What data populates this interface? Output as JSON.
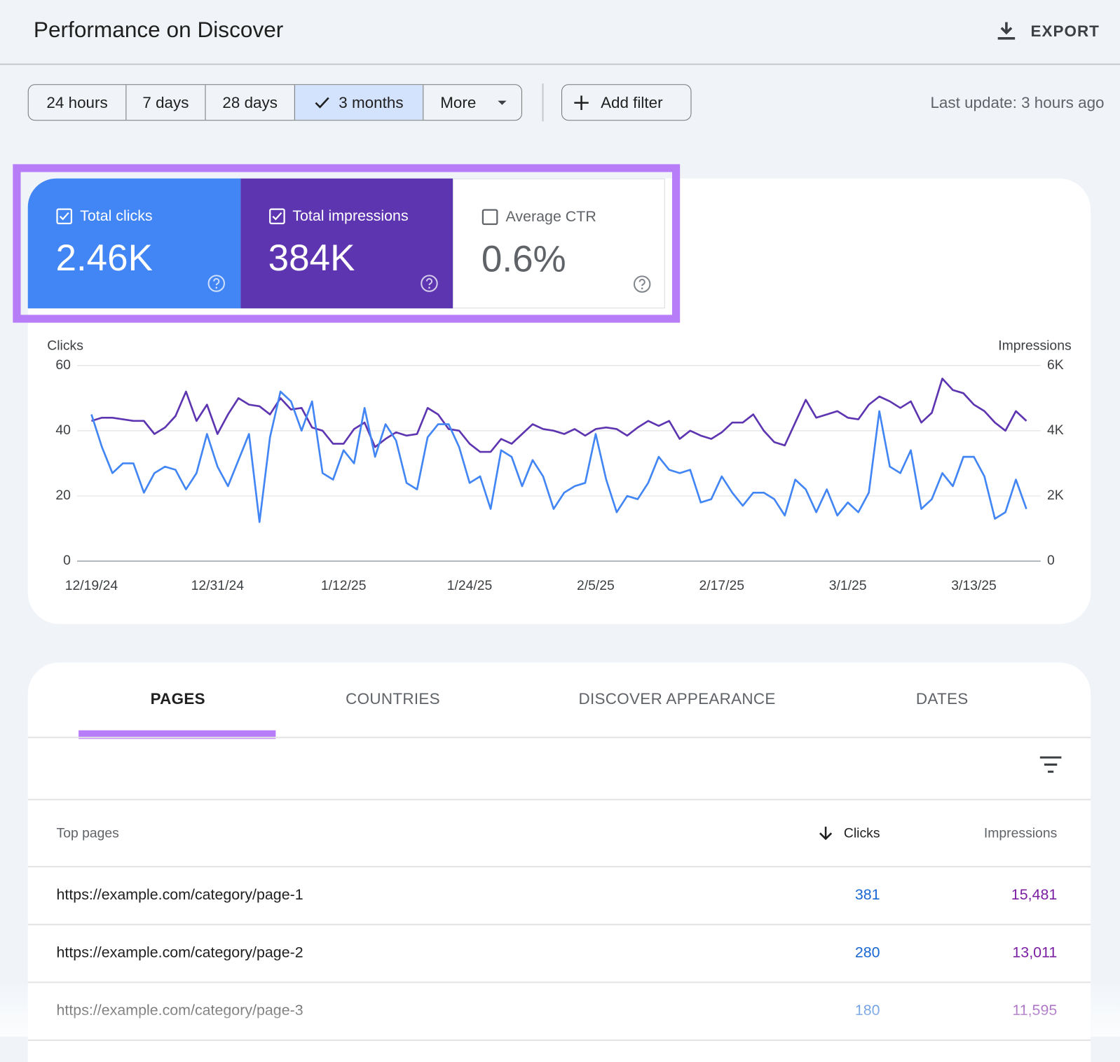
{
  "header": {
    "title": "Performance on Discover",
    "export": "EXPORT"
  },
  "toolbar": {
    "ranges": [
      "24 hours",
      "7 days",
      "28 days",
      "3 months",
      "More"
    ],
    "selected": 3,
    "add_filter": "Add filter",
    "last_update": "Last update: 3 hours ago"
  },
  "scorecards": [
    {
      "label": "Total clicks",
      "value": "2.46K",
      "checked": true,
      "color": "#4285f4"
    },
    {
      "label": "Total impressions",
      "value": "384K",
      "checked": true,
      "color": "#5e35b1"
    },
    {
      "label": "Average CTR",
      "value": "0.6%",
      "checked": false,
      "color": "#ffffff"
    }
  ],
  "chart_data": {
    "type": "line",
    "x": [
      "12/19/24",
      "12/20/24",
      "12/21/24",
      "12/22/24",
      "12/23/24",
      "12/24/24",
      "12/25/24",
      "12/26/24",
      "12/27/24",
      "12/28/24",
      "12/29/24",
      "12/30/24",
      "12/31/24",
      "1/1/25",
      "1/2/25",
      "1/3/25",
      "1/4/25",
      "1/5/25",
      "1/6/25",
      "1/7/25",
      "1/8/25",
      "1/9/25",
      "1/10/25",
      "1/11/25",
      "1/12/25",
      "1/13/25",
      "1/14/25",
      "1/15/25",
      "1/16/25",
      "1/17/25",
      "1/18/25",
      "1/19/25",
      "1/20/25",
      "1/21/25",
      "1/22/25",
      "1/23/25",
      "1/24/25",
      "1/25/25",
      "1/26/25",
      "1/27/25",
      "1/28/25",
      "1/29/25",
      "1/30/25",
      "1/31/25",
      "2/1/25",
      "2/2/25",
      "2/3/25",
      "2/4/25",
      "2/5/25",
      "2/6/25",
      "2/7/25",
      "2/8/25",
      "2/9/25",
      "2/10/25",
      "2/11/25",
      "2/12/25",
      "2/13/25",
      "2/14/25",
      "2/15/25",
      "2/16/25",
      "2/17/25",
      "2/18/25",
      "2/19/25",
      "2/20/25",
      "2/21/25",
      "2/22/25",
      "2/23/25",
      "2/24/25",
      "2/25/25",
      "2/26/25",
      "2/27/25",
      "2/28/25",
      "3/1/25",
      "3/2/25",
      "3/3/25",
      "3/4/25",
      "3/5/25",
      "3/6/25",
      "3/7/25",
      "3/8/25",
      "3/9/25",
      "3/10/25",
      "3/11/25",
      "3/12/25",
      "3/13/25",
      "3/14/25",
      "3/15/25",
      "3/16/25",
      "3/17/25",
      "3/18/25"
    ],
    "xticks": [
      "12/19/24",
      "12/31/24",
      "1/12/25",
      "1/24/25",
      "2/5/25",
      "2/17/25",
      "3/1/25",
      "3/13/25"
    ],
    "series": [
      {
        "name": "Clicks",
        "color": "#4285f4",
        "values": [
          45,
          35,
          27,
          30,
          30,
          21,
          27,
          29,
          28,
          22,
          27,
          39,
          29,
          23,
          31,
          39,
          12,
          38,
          52,
          49,
          40,
          49,
          27,
          25,
          34,
          30,
          47,
          32,
          42,
          37,
          24,
          22,
          38,
          42,
          42,
          35,
          24,
          26,
          16,
          34,
          32,
          23,
          31,
          26,
          16,
          21,
          23,
          24,
          39,
          25,
          15,
          20,
          19,
          24,
          32,
          28,
          27,
          28,
          18,
          19,
          26,
          21,
          17,
          21,
          21,
          19,
          14,
          25,
          22,
          15,
          22,
          14,
          18,
          15,
          21,
          46,
          29,
          27,
          34,
          16,
          19,
          27,
          23,
          32,
          32,
          26,
          13,
          15,
          25,
          16
        ]
      },
      {
        "name": "Impressions",
        "color": "#5e35b1",
        "axis": "y2",
        "values": [
          4300,
          4400,
          4400,
          4350,
          4300,
          4300,
          3900,
          4100,
          4450,
          5200,
          4300,
          4800,
          3900,
          4500,
          5000,
          4800,
          4750,
          4500,
          5000,
          4650,
          4700,
          4100,
          4000,
          3600,
          3600,
          4050,
          4250,
          3500,
          3750,
          3950,
          3850,
          3900,
          4700,
          4500,
          4050,
          4000,
          3600,
          3350,
          3350,
          3750,
          3600,
          3900,
          4200,
          4050,
          4000,
          3900,
          4050,
          3850,
          4050,
          4100,
          4050,
          3850,
          4100,
          4300,
          4150,
          4300,
          3750,
          4000,
          3850,
          3750,
          3950,
          4250,
          4250,
          4500,
          4000,
          3650,
          3550,
          4250,
          4950,
          4400,
          4500,
          4600,
          4400,
          4350,
          4800,
          5050,
          4900,
          4700,
          4900,
          4250,
          4550,
          5600,
          5250,
          5150,
          4800,
          4600,
          4250,
          4000,
          4600,
          4300
        ]
      }
    ],
    "ylim": [
      0,
      60
    ],
    "yticks": [
      0,
      20,
      40,
      60
    ],
    "y2lim": [
      0,
      6000
    ],
    "y2ticks": [
      0,
      {
        "value": 2000,
        "label": "2K"
      },
      {
        "value": 4000,
        "label": "4K"
      },
      {
        "value": 6000,
        "label": "6K"
      }
    ],
    "grid": true
  },
  "tabs": {
    "items": [
      "PAGES",
      "COUNTRIES",
      "DISCOVER APPEARANCE",
      "DATES"
    ],
    "selected": 0
  },
  "table": {
    "columns": [
      "Top pages",
      "Clicks",
      "Impressions"
    ],
    "rows": [
      [
        "https://example.com/category/page-1",
        "381",
        "15,481"
      ],
      [
        "https://example.com/category/page-2",
        "280",
        "13,011"
      ],
      [
        "https://example.com/category/page-3",
        "180",
        "11,595"
      ]
    ]
  }
}
